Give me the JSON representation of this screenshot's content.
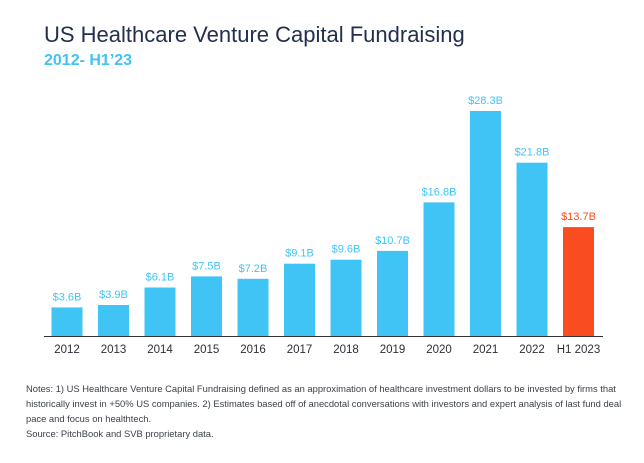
{
  "header": {
    "title": "US Healthcare Venture Capital Fundraising",
    "subtitle": "2012- H1’23"
  },
  "notes": {
    "line1": "Notes: 1) US Healthcare Venture Capital Fundraising defined as an approximation of healthcare investment dollars to be invested by firms that historically invest in +50% US companies. 2) Estimates based off of anecdotal conversations with investors and expert analysis of last fund deal pace and focus on healthtech.",
    "line2": "Source: PitchBook and SVB proprietary data."
  },
  "colors": {
    "bar": "#40c4f5",
    "highlight": "#fa4c21",
    "axis": "#333333"
  },
  "chart_data": {
    "type": "bar",
    "title": "US Healthcare Venture Capital Fundraising",
    "subtitle": "2012- H1’23",
    "xlabel": "",
    "ylabel": "",
    "unit": "$B",
    "categories": [
      "2012",
      "2013",
      "2014",
      "2015",
      "2016",
      "2017",
      "2018",
      "2019",
      "2020",
      "2021",
      "2022",
      "H1 2023"
    ],
    "values": [
      3.6,
      3.9,
      6.1,
      7.5,
      7.2,
      9.1,
      9.6,
      10.7,
      16.8,
      28.3,
      21.8,
      13.7
    ],
    "labels": [
      "$3.6B",
      "$3.9B",
      "$6.1B",
      "$7.5B",
      "$7.2B",
      "$9.1B",
      "$9.6B",
      "$10.7B",
      "$16.8B",
      "$28.3B",
      "$21.8B",
      "$13.7B"
    ],
    "highlight_index": 11,
    "ylim": [
      0,
      28.3
    ],
    "grid": false,
    "legend": "none"
  }
}
